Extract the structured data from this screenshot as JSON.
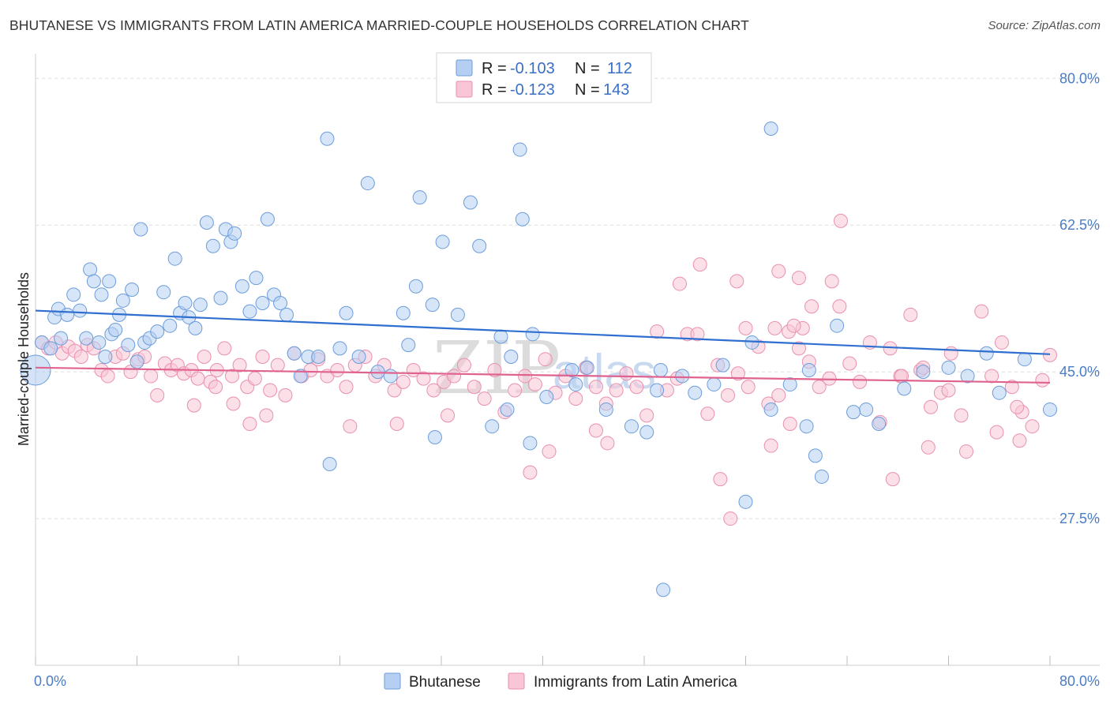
{
  "title": "BHUTANESE VS IMMIGRANTS FROM LATIN AMERICA MARRIED-COUPLE HOUSEHOLDS CORRELATION CHART",
  "source": "Source: ZipAtlas.com",
  "watermark": {
    "zip": "ZIP",
    "atlas": "atlas"
  },
  "legend": {
    "r_label": "R =",
    "n_label": "N =",
    "rows": [
      {
        "r": "-0.103",
        "n": "112",
        "color": "#a9c8f0"
      },
      {
        "r": "-0.123",
        "n": "143",
        "color": "#f6b8cc"
      }
    ]
  },
  "colors": {
    "blue_fill": "#b5cff2",
    "blue_stroke": "#6d9ddb",
    "blue_line": "#2f6fd0",
    "pink_fill": "#f8c6d6",
    "pink_stroke": "#e990b0",
    "pink_line": "#e0638f"
  },
  "chart_data": {
    "type": "scatter",
    "xlabel": "",
    "ylabel": "Married-couple Households",
    "xlim": [
      0,
      80
    ],
    "ylim": [
      10,
      82
    ],
    "x_tick_labels": [
      "0.0%",
      "80.0%"
    ],
    "y_ticks": [
      27.5,
      45.0,
      62.5,
      80.0
    ],
    "y_tick_labels": [
      "27.5%",
      "45.0%",
      "62.5%",
      "80.0%"
    ],
    "grid": true,
    "legend_position": "top-center",
    "series": [
      {
        "name": "Bhutanese",
        "trend": [
          [
            0,
            52.3
          ],
          [
            80,
            47.1
          ]
        ],
        "points": [
          [
            0.5,
            48.5
          ],
          [
            1.5,
            51.5
          ],
          [
            1.8,
            52.5
          ],
          [
            2.0,
            49.0
          ],
          [
            1.2,
            47.8
          ],
          [
            2.5,
            51.8
          ],
          [
            3.0,
            54.2
          ],
          [
            3.5,
            52.3
          ],
          [
            4.0,
            49.0
          ],
          [
            4.3,
            57.2
          ],
          [
            4.6,
            55.8
          ],
          [
            5.2,
            54.2
          ],
          [
            5.0,
            48.5
          ],
          [
            5.5,
            46.8
          ],
          [
            5.8,
            55.8
          ],
          [
            6.0,
            49.5
          ],
          [
            6.3,
            50.0
          ],
          [
            6.6,
            51.8
          ],
          [
            6.9,
            53.5
          ],
          [
            7.3,
            48.2
          ],
          [
            7.6,
            54.8
          ],
          [
            8.0,
            46.2
          ],
          [
            8.3,
            62.0
          ],
          [
            8.6,
            48.5
          ],
          [
            9.0,
            49.0
          ],
          [
            9.6,
            49.8
          ],
          [
            10.1,
            54.5
          ],
          [
            10.6,
            50.5
          ],
          [
            11.0,
            58.5
          ],
          [
            11.4,
            52.0
          ],
          [
            11.8,
            53.2
          ],
          [
            12.1,
            51.5
          ],
          [
            12.6,
            50.2
          ],
          [
            13.0,
            53.0
          ],
          [
            13.5,
            62.8
          ],
          [
            14.0,
            60.0
          ],
          [
            14.6,
            53.8
          ],
          [
            15.0,
            62.0
          ],
          [
            15.4,
            60.5
          ],
          [
            15.7,
            61.5
          ],
          [
            16.3,
            55.2
          ],
          [
            16.9,
            52.2
          ],
          [
            17.4,
            56.2
          ],
          [
            17.9,
            53.2
          ],
          [
            18.3,
            63.2
          ],
          [
            18.8,
            54.2
          ],
          [
            19.3,
            53.2
          ],
          [
            19.8,
            51.8
          ],
          [
            20.4,
            47.2
          ],
          [
            20.9,
            44.5
          ],
          [
            21.5,
            46.8
          ],
          [
            22.3,
            46.8
          ],
          [
            23.0,
            72.8
          ],
          [
            24.0,
            47.8
          ],
          [
            24.5,
            52.0
          ],
          [
            25.5,
            46.8
          ],
          [
            26.2,
            67.5
          ],
          [
            27.0,
            45.0
          ],
          [
            28.0,
            44.5
          ],
          [
            29.0,
            52.0
          ],
          [
            29.4,
            48.2
          ],
          [
            30.0,
            55.2
          ],
          [
            30.3,
            65.8
          ],
          [
            31.3,
            53.0
          ],
          [
            32.1,
            60.5
          ],
          [
            33.3,
            51.8
          ],
          [
            34.3,
            65.2
          ],
          [
            35.0,
            60.0
          ],
          [
            36.7,
            49.2
          ],
          [
            37.5,
            46.8
          ],
          [
            38.2,
            71.5
          ],
          [
            38.4,
            63.2
          ],
          [
            39.2,
            49.5
          ],
          [
            40.3,
            42.0
          ],
          [
            42.3,
            45.2
          ],
          [
            42.6,
            43.5
          ],
          [
            43.5,
            45.5
          ],
          [
            45.0,
            40.5
          ],
          [
            47.0,
            38.5
          ],
          [
            48.2,
            37.8
          ],
          [
            49.0,
            42.8
          ],
          [
            49.3,
            45.2
          ],
          [
            51.0,
            44.5
          ],
          [
            52.0,
            42.5
          ],
          [
            53.5,
            43.5
          ],
          [
            54.2,
            45.8
          ],
          [
            56.5,
            48.5
          ],
          [
            58.0,
            40.5
          ],
          [
            59.5,
            43.5
          ],
          [
            61.0,
            45.2
          ],
          [
            63.2,
            50.5
          ],
          [
            65.5,
            40.5
          ],
          [
            66.5,
            38.8
          ],
          [
            68.5,
            43.0
          ],
          [
            70.0,
            45.0
          ],
          [
            72.0,
            45.5
          ],
          [
            73.5,
            44.5
          ],
          [
            75.0,
            47.2
          ],
          [
            76.0,
            42.5
          ],
          [
            78.0,
            46.5
          ],
          [
            80.0,
            40.5
          ],
          [
            60.8,
            38.5
          ],
          [
            64.5,
            40.2
          ],
          [
            61.5,
            35.0
          ],
          [
            62.0,
            32.5
          ],
          [
            56.0,
            29.5
          ],
          [
            49.5,
            19.0
          ],
          [
            58.0,
            74.0
          ],
          [
            23.2,
            34.0
          ],
          [
            31.5,
            37.2
          ],
          [
            37.2,
            40.5
          ],
          [
            39.0,
            36.5
          ],
          [
            36.0,
            38.5
          ]
        ]
      },
      {
        "name": "Immigrants from Latin America",
        "trend": [
          [
            0,
            45.5
          ],
          [
            80,
            43.7
          ]
        ],
        "points": [
          [
            0.5,
            48.5
          ],
          [
            1.0,
            47.8
          ],
          [
            1.6,
            48.5
          ],
          [
            2.1,
            47.2
          ],
          [
            2.6,
            48.0
          ],
          [
            3.1,
            47.5
          ],
          [
            3.6,
            46.8
          ],
          [
            4.1,
            48.2
          ],
          [
            4.6,
            47.8
          ],
          [
            5.2,
            45.2
          ],
          [
            5.7,
            44.5
          ],
          [
            6.3,
            46.8
          ],
          [
            6.9,
            47.2
          ],
          [
            7.5,
            45.0
          ],
          [
            8.1,
            46.5
          ],
          [
            8.6,
            46.8
          ],
          [
            9.1,
            44.5
          ],
          [
            9.6,
            42.2
          ],
          [
            10.2,
            46.0
          ],
          [
            10.7,
            45.2
          ],
          [
            11.2,
            45.8
          ],
          [
            11.7,
            44.8
          ],
          [
            12.3,
            45.2
          ],
          [
            12.8,
            44.2
          ],
          [
            13.3,
            46.8
          ],
          [
            13.8,
            43.8
          ],
          [
            14.3,
            45.2
          ],
          [
            14.9,
            47.8
          ],
          [
            15.5,
            44.5
          ],
          [
            16.1,
            45.8
          ],
          [
            16.7,
            43.2
          ],
          [
            17.3,
            44.2
          ],
          [
            17.9,
            46.8
          ],
          [
            18.5,
            42.8
          ],
          [
            19.1,
            45.8
          ],
          [
            19.7,
            42.2
          ],
          [
            20.4,
            47.2
          ],
          [
            21.0,
            44.5
          ],
          [
            21.7,
            45.2
          ],
          [
            22.3,
            46.5
          ],
          [
            23.0,
            44.5
          ],
          [
            23.8,
            45.2
          ],
          [
            24.5,
            43.2
          ],
          [
            25.2,
            45.8
          ],
          [
            26.0,
            46.8
          ],
          [
            26.8,
            44.5
          ],
          [
            27.5,
            45.8
          ],
          [
            28.3,
            42.8
          ],
          [
            29.0,
            43.8
          ],
          [
            29.8,
            45.2
          ],
          [
            30.6,
            44.2
          ],
          [
            31.4,
            42.8
          ],
          [
            32.2,
            43.8
          ],
          [
            33.0,
            44.5
          ],
          [
            33.8,
            45.8
          ],
          [
            34.6,
            43.2
          ],
          [
            35.4,
            41.8
          ],
          [
            36.2,
            45.2
          ],
          [
            37.0,
            40.2
          ],
          [
            37.8,
            42.8
          ],
          [
            38.6,
            44.5
          ],
          [
            39.4,
            43.5
          ],
          [
            40.2,
            46.5
          ],
          [
            41.0,
            42.5
          ],
          [
            41.8,
            44.5
          ],
          [
            42.6,
            41.8
          ],
          [
            43.4,
            45.5
          ],
          [
            44.2,
            43.2
          ],
          [
            45.0,
            41.2
          ],
          [
            45.8,
            42.8
          ],
          [
            46.6,
            44.8
          ],
          [
            47.4,
            43.2
          ],
          [
            48.2,
            39.8
          ],
          [
            49.0,
            49.8
          ],
          [
            49.8,
            42.8
          ],
          [
            50.6,
            44.2
          ],
          [
            51.4,
            49.5
          ],
          [
            52.2,
            49.5
          ],
          [
            53.0,
            40.0
          ],
          [
            53.8,
            45.8
          ],
          [
            54.6,
            42.2
          ],
          [
            55.4,
            44.8
          ],
          [
            56.2,
            43.2
          ],
          [
            57.0,
            48.0
          ],
          [
            57.8,
            41.2
          ],
          [
            58.6,
            42.2
          ],
          [
            59.4,
            49.8
          ],
          [
            60.2,
            47.8
          ],
          [
            61.0,
            46.2
          ],
          [
            61.8,
            43.2
          ],
          [
            62.6,
            44.2
          ],
          [
            63.4,
            52.8
          ],
          [
            64.2,
            46.0
          ],
          [
            65.0,
            43.8
          ],
          [
            65.8,
            48.5
          ],
          [
            66.6,
            39.0
          ],
          [
            67.4,
            47.8
          ],
          [
            68.2,
            44.5
          ],
          [
            69.0,
            51.8
          ],
          [
            69.8,
            45.2
          ],
          [
            70.6,
            40.8
          ],
          [
            71.4,
            42.5
          ],
          [
            72.2,
            47.2
          ],
          [
            73.0,
            39.8
          ],
          [
            74.6,
            52.2
          ],
          [
            75.4,
            44.5
          ],
          [
            76.2,
            48.5
          ],
          [
            77.0,
            43.2
          ],
          [
            77.8,
            40.2
          ],
          [
            78.6,
            38.5
          ],
          [
            79.4,
            44.0
          ],
          [
            80.0,
            47.0
          ],
          [
            52.4,
            57.8
          ],
          [
            55.3,
            55.8
          ],
          [
            58.6,
            57.0
          ],
          [
            60.2,
            56.2
          ],
          [
            61.2,
            52.8
          ],
          [
            62.8,
            55.8
          ],
          [
            56.0,
            50.2
          ],
          [
            58.3,
            50.2
          ],
          [
            60.5,
            50.2
          ],
          [
            50.8,
            55.5
          ],
          [
            59.8,
            50.5
          ],
          [
            63.5,
            63.0
          ],
          [
            54.0,
            32.2
          ],
          [
            54.8,
            27.5
          ],
          [
            58.0,
            36.2
          ],
          [
            59.5,
            38.8
          ],
          [
            67.6,
            32.2
          ],
          [
            70.4,
            36.0
          ],
          [
            73.4,
            35.5
          ],
          [
            75.8,
            37.8
          ],
          [
            77.6,
            36.8
          ],
          [
            77.4,
            40.8
          ],
          [
            68.3,
            44.5
          ],
          [
            70.0,
            45.5
          ],
          [
            72.0,
            42.8
          ],
          [
            45.1,
            36.5
          ],
          [
            40.5,
            35.5
          ],
          [
            39.0,
            33.0
          ],
          [
            44.2,
            38.0
          ],
          [
            32.5,
            39.8
          ],
          [
            28.5,
            38.8
          ],
          [
            24.8,
            38.5
          ],
          [
            18.2,
            39.8
          ],
          [
            16.9,
            38.8
          ],
          [
            15.6,
            41.2
          ],
          [
            14.2,
            43.2
          ],
          [
            12.5,
            41.0
          ]
        ]
      }
    ]
  }
}
